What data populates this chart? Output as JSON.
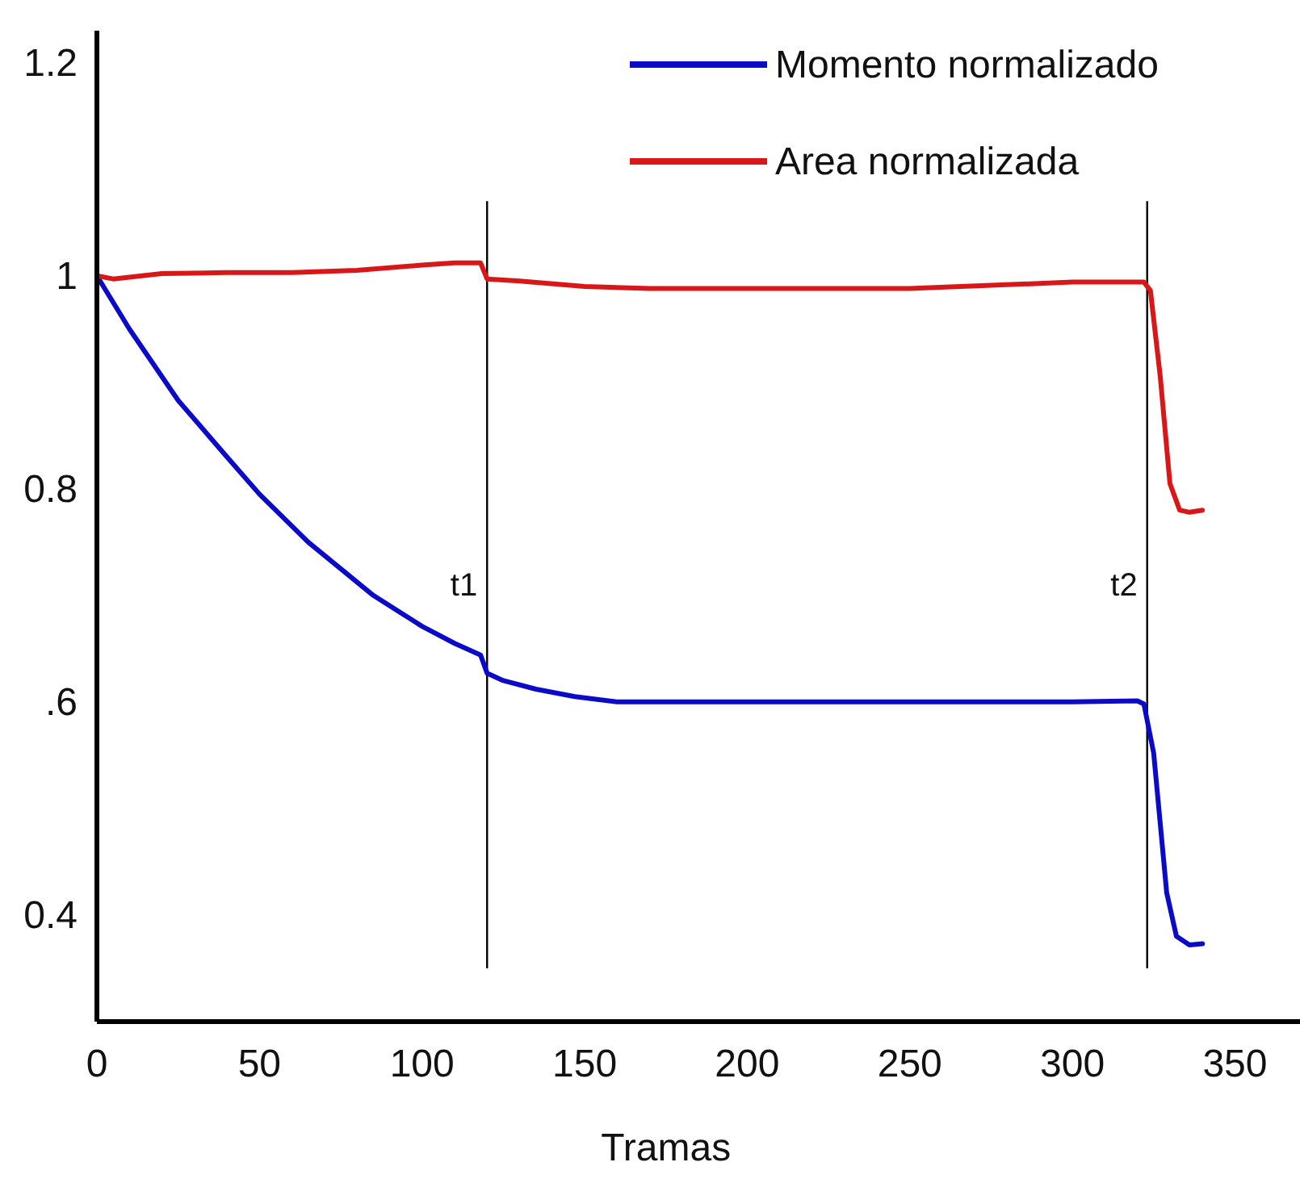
{
  "chart_data": {
    "type": "line",
    "xlabel": "Tramas",
    "xlim": [
      0,
      370
    ],
    "xticks": [
      0,
      50,
      100,
      150,
      200,
      250,
      300,
      350
    ],
    "ylim": [
      0.3,
      1.23
    ],
    "yticks": [
      {
        "value": 0.4,
        "label": "0.4"
      },
      {
        "value": 0.6,
        "label": ".6"
      },
      {
        "value": 0.8,
        "label": "0.8"
      },
      1,
      1.2
    ],
    "legend": "top right",
    "grid": false,
    "marker": "none",
    "line_style": "solid",
    "series": [
      {
        "name": "Momento normalizado",
        "color": "#0a0ac8",
        "x": [
          0,
          10,
          25,
          40,
          50,
          65,
          85,
          100,
          110,
          118,
          120,
          125,
          135,
          147,
          160,
          200,
          250,
          300,
          320,
          322,
          325,
          329,
          332,
          336,
          340
        ],
        "values": [
          1,
          0.95,
          0.883,
          0.83,
          0.795,
          0.75,
          0.7,
          0.671,
          0.655,
          0.644,
          0.627,
          0.62,
          0.612,
          0.605,
          0.6,
          0.6,
          0.6,
          0.6,
          0.601,
          0.598,
          0.552,
          0.421,
          0.38,
          0.372,
          0.373
        ]
      },
      {
        "name": "Area normalizada",
        "color": "#d81818",
        "x": [
          0,
          5,
          20,
          40,
          60,
          80,
          100,
          110,
          118,
          120,
          130,
          150,
          170,
          200,
          250,
          300,
          310,
          322,
          324,
          327,
          330,
          333,
          336,
          340
        ],
        "values": [
          1,
          0.997,
          1.002,
          1.003,
          1.003,
          1.005,
          1.01,
          1.012,
          1.012,
          0.997,
          0.995,
          0.99,
          0.988,
          0.988,
          0.988,
          0.994,
          0.994,
          0.994,
          0.986,
          0.906,
          0.805,
          0.78,
          0.778,
          0.78
        ]
      }
    ],
    "ref_lines": [
      {
        "axis": "x",
        "value": 120,
        "label": "t1",
        "color": "#000000"
      },
      {
        "axis": "x",
        "value": 323,
        "label": "t2",
        "color": "#000000"
      }
    ]
  }
}
